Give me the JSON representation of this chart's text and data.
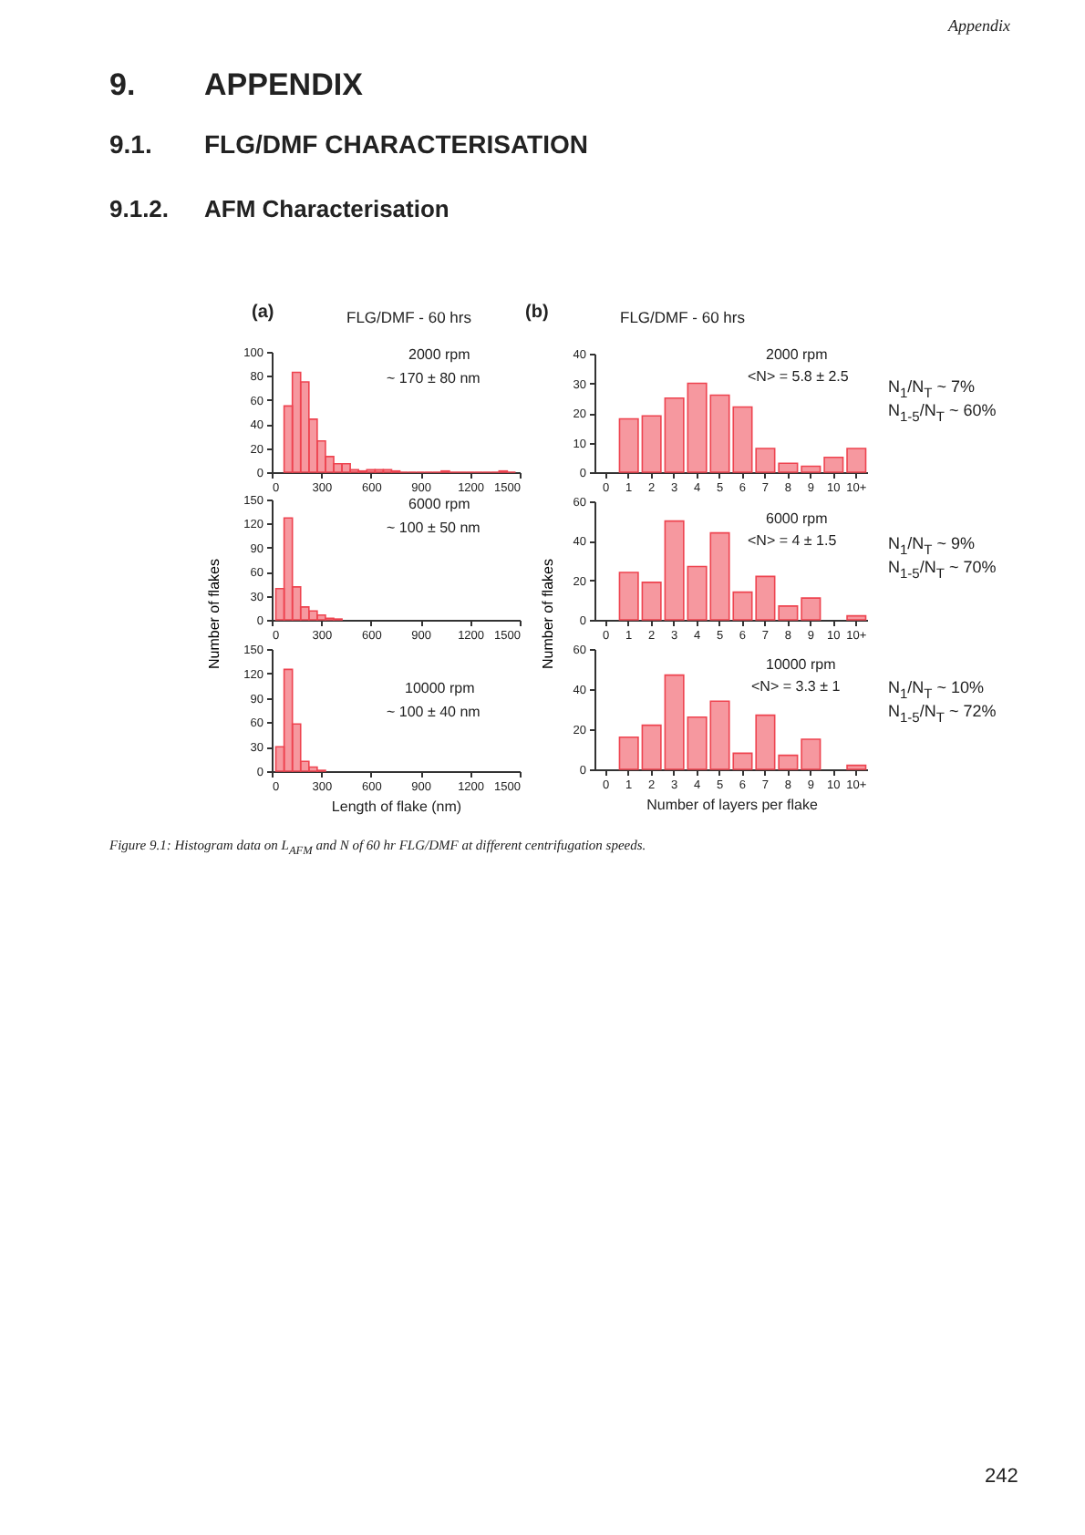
{
  "chart_data": [
    {
      "type": "histogram",
      "title": "FLG/DMF - 60 hrs",
      "annotations": [
        "2000 rpm",
        "~ 170 ± 80 nm",
        "(a)",
        "Appendix",
        "9.",
        "APPENDIX",
        "9.1.",
        "FLG/DMF CHARACTERISATION",
        "9.1.2.",
        "AFM Characterisation"
      ],
      "bins": [
        75,
        125,
        175,
        225,
        275,
        325,
        375,
        425,
        475,
        525,
        575,
        625,
        675,
        725,
        775,
        825,
        875,
        925,
        975,
        1025,
        1075,
        1125,
        1175,
        1225,
        1275,
        1325,
        1375,
        1425,
        1475
      ],
      "values": [
        55,
        83,
        75,
        44,
        26,
        13,
        7,
        7,
        2,
        1,
        2,
        2,
        2,
        1,
        0,
        0,
        0,
        0,
        0,
        1,
        0,
        0,
        0,
        0,
        0,
        0,
        1,
        0
      ],
      "color": "#ee4450",
      "xlim": [
        0,
        1500
      ],
      "xticks": [
        0,
        300,
        600,
        900,
        1200,
        1500
      ],
      "ylim": [
        0,
        100
      ],
      "yticks": [
        0,
        20,
        40,
        60,
        80,
        100
      ]
    },
    {
      "type": "histogram",
      "ylabel": "Number of flakes",
      "annotations": [
        "6000 rpm",
        "~ 100 ± 50 nm"
      ],
      "bins": [
        25,
        75,
        125,
        175,
        225,
        275,
        325,
        375,
        425
      ],
      "values": [
        39,
        127,
        41,
        16,
        11,
        6,
        2,
        1
      ],
      "color": "#ee4450",
      "xlim": [
        0,
        1500
      ],
      "xticks": [
        0,
        300,
        600,
        900,
        1200,
        1500
      ],
      "ylim": [
        0,
        150
      ],
      "yticks": [
        0,
        30,
        60,
        90,
        120,
        150
      ]
    },
    {
      "type": "histogram",
      "xlabel": "Length of flake (nm)",
      "annotations": [
        "10000 rpm",
        "~ 100 ± 40 nm"
      ],
      "bins": [
        25,
        75,
        125,
        175,
        225,
        275,
        325
      ],
      "values": [
        30,
        125,
        58,
        12,
        5,
        1
      ],
      "color": "#ee4450",
      "xlim": [
        0,
        1500
      ],
      "xticks": [
        0,
        300,
        600,
        900,
        1200,
        1500
      ],
      "ylim": [
        0,
        150
      ],
      "yticks": [
        0,
        30,
        60,
        90,
        120,
        150
      ]
    },
    {
      "type": "bar",
      "title": "FLG/DMF - 60 hrs",
      "annotations": [
        "2000 rpm",
        "<N> = 5.8 ± 2.5",
        "N$_{1}$/N$_{T}$ ~ 7%",
        "N$_{1-5}$/N$_{T}$ ~ 60%",
        "(b)"
      ],
      "categories": [
        "0",
        "1",
        "2",
        "3",
        "4",
        "5",
        "6",
        "7",
        "8",
        "9",
        "10",
        "10+"
      ],
      "values": [
        null,
        18,
        19,
        25,
        30,
        26,
        22,
        8,
        3,
        2,
        5,
        8
      ],
      "color": "#ee4450",
      "ylim": [
        0,
        40
      ],
      "yticks": [
        0,
        10,
        20,
        30,
        40
      ]
    },
    {
      "type": "bar",
      "ylabel": "Number of flakes",
      "annotations": [
        "6000 rpm",
        "<N> = 4 ± 1.5",
        "N$_{1}$/N$_{T}$ ~ 9%",
        "N$_{1-5}$/N$_{T}$ ~ 70%"
      ],
      "categories": [
        "0",
        "1",
        "2",
        "3",
        "4",
        "5",
        "6",
        "7",
        "8",
        "9",
        "10",
        "10+"
      ],
      "values": [
        null,
        24,
        19,
        50,
        27,
        44,
        14,
        22,
        7,
        11,
        null,
        2
      ],
      "color": "#ee4450",
      "ylim": [
        0,
        60
      ],
      "yticks": [
        0,
        20,
        40,
        60
      ]
    },
    {
      "type": "bar",
      "xlabel": "Number of layers per flake",
      "annotations": [
        "10000 rpm",
        "<N> = 3.3 ± 1",
        "N$_{1}$/N$_{T}$ ~ 10%",
        "N$_{1-5}$/N$_{T}$ ~ 72%",
        "Figure 9.1: Histogram data on L$_{AFM}$  and N of 60 hr FLG/DMF at different centrifugation speeds.",
        "242"
      ],
      "categories": [
        "0",
        "1",
        "2",
        "3",
        "4",
        "5",
        "6",
        "7",
        "8",
        "9",
        "10",
        "10+"
      ],
      "values": [
        null,
        16,
        22,
        47,
        26,
        34,
        8,
        27,
        7,
        15,
        null,
        2
      ],
      "color": "#ee4450",
      "ylim": [
        0,
        60
      ],
      "yticks": [
        0,
        20,
        40,
        60
      ]
    }
  ]
}
